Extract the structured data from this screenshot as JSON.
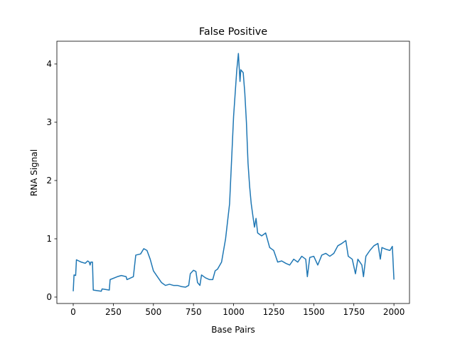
{
  "chart_data": {
    "type": "line",
    "title": "False Positive",
    "x_label": "Base Pairs",
    "y_label": "RNA Signal",
    "color": "#1f77b4",
    "x": [
      0,
      5,
      15,
      20,
      50,
      75,
      90,
      100,
      105,
      110,
      120,
      125,
      175,
      180,
      225,
      230,
      275,
      300,
      330,
      335,
      375,
      390,
      420,
      440,
      460,
      480,
      500,
      525,
      550,
      575,
      600,
      625,
      650,
      675,
      700,
      720,
      730,
      750,
      765,
      775,
      790,
      800,
      825,
      850,
      870,
      885,
      900,
      925,
      950,
      975,
      990,
      1000,
      1010,
      1020,
      1030,
      1040,
      1045,
      1060,
      1070,
      1080,
      1090,
      1100,
      1110,
      1120,
      1130,
      1140,
      1150,
      1175,
      1200,
      1225,
      1250,
      1275,
      1300,
      1325,
      1350,
      1375,
      1400,
      1425,
      1450,
      1460,
      1475,
      1500,
      1525,
      1550,
      1575,
      1600,
      1625,
      1650,
      1675,
      1700,
      1715,
      1740,
      1760,
      1775,
      1800,
      1810,
      1825,
      1850,
      1875,
      1900,
      1915,
      1925,
      1950,
      1975,
      1990,
      2000
    ],
    "values": [
      0.1,
      0.38,
      0.37,
      0.64,
      0.6,
      0.58,
      0.62,
      0.6,
      0.55,
      0.6,
      0.6,
      0.12,
      0.1,
      0.14,
      0.12,
      0.3,
      0.35,
      0.37,
      0.35,
      0.3,
      0.35,
      0.72,
      0.74,
      0.83,
      0.8,
      0.65,
      0.45,
      0.35,
      0.25,
      0.2,
      0.22,
      0.2,
      0.2,
      0.18,
      0.17,
      0.2,
      0.4,
      0.46,
      0.44,
      0.25,
      0.2,
      0.38,
      0.33,
      0.3,
      0.3,
      0.45,
      0.48,
      0.6,
      1.0,
      1.6,
      2.5,
      3.1,
      3.5,
      3.9,
      4.18,
      3.7,
      3.9,
      3.85,
      3.5,
      3.0,
      2.3,
      1.9,
      1.6,
      1.4,
      1.2,
      1.35,
      1.1,
      1.05,
      1.1,
      0.85,
      0.8,
      0.6,
      0.62,
      0.58,
      0.55,
      0.65,
      0.6,
      0.7,
      0.65,
      0.35,
      0.68,
      0.7,
      0.55,
      0.72,
      0.75,
      0.7,
      0.75,
      0.88,
      0.92,
      0.97,
      0.7,
      0.65,
      0.4,
      0.65,
      0.55,
      0.35,
      0.7,
      0.8,
      0.88,
      0.92,
      0.65,
      0.85,
      0.82,
      0.8,
      0.87,
      0.3
    ],
    "xlim": [
      -102,
      2097
    ],
    "ylim": [
      -0.11,
      4.39
    ],
    "xticks": [
      0,
      250,
      500,
      750,
      1000,
      1250,
      1500,
      1750,
      2000
    ],
    "yticks": [
      0,
      1,
      2,
      3,
      4
    ]
  }
}
